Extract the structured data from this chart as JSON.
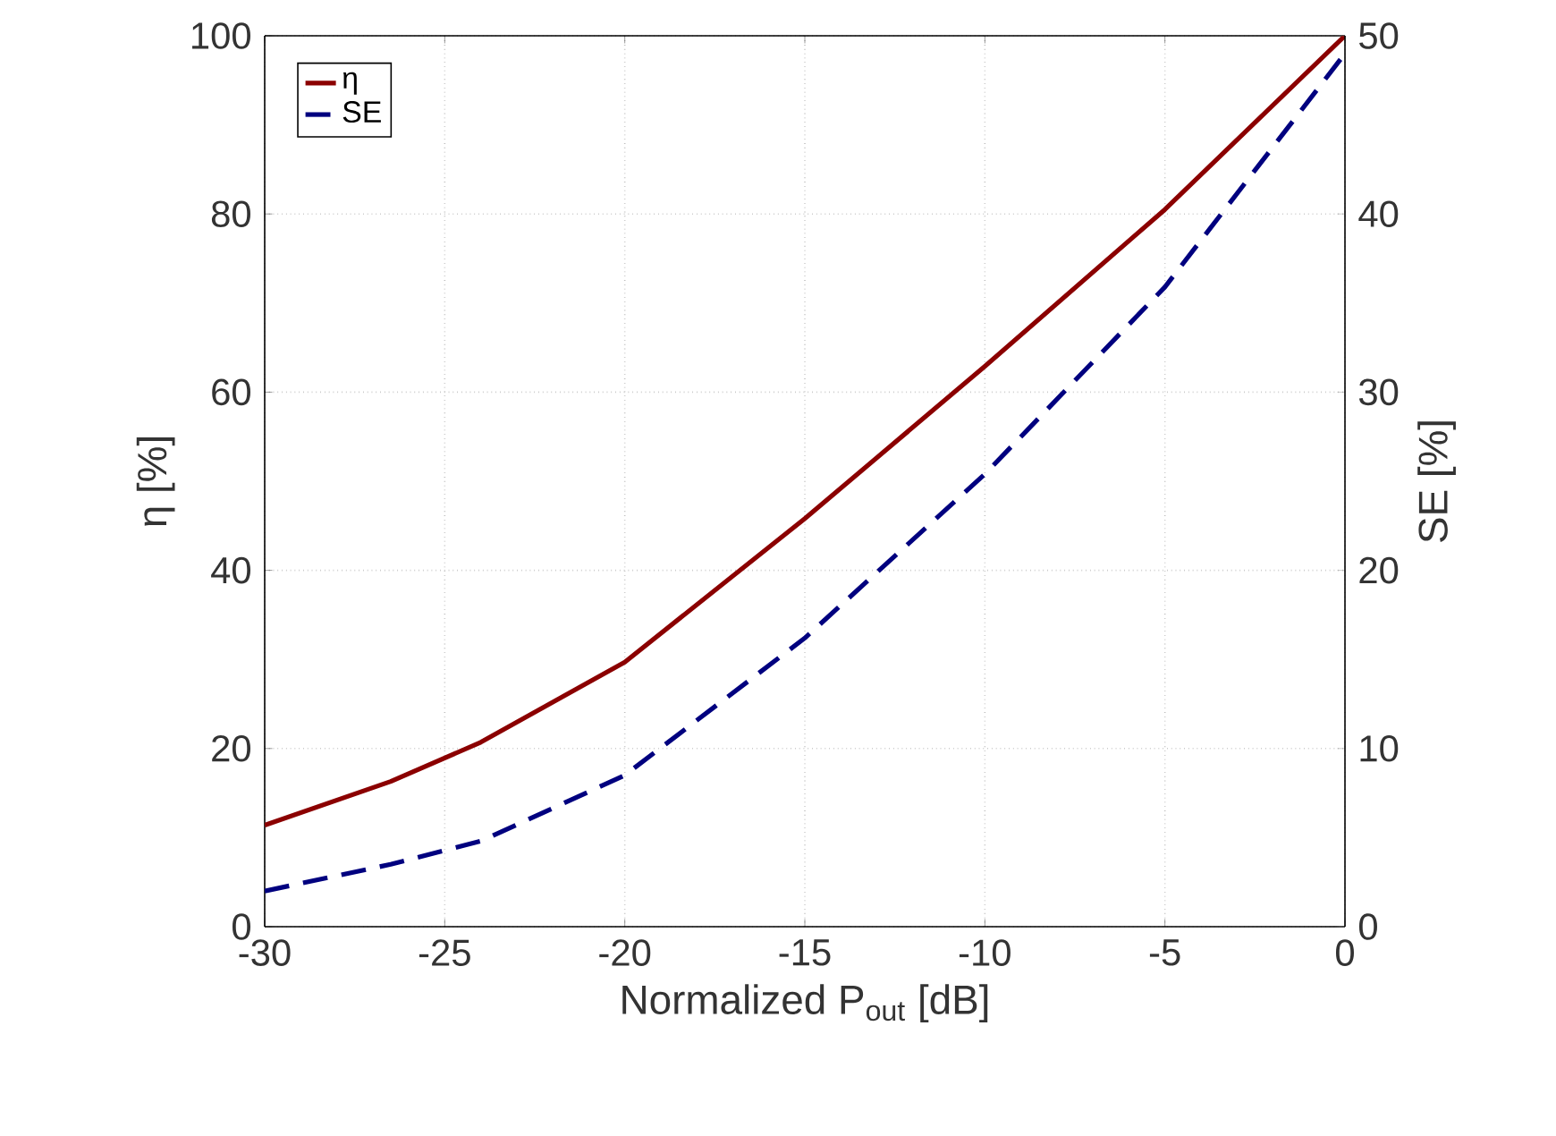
{
  "chart_data": {
    "type": "line",
    "xlabel": "Normalized P$_{out}$ [dB]",
    "ylabel": "η [%]",
    "y2label": "SE [%]",
    "x": [
      -30,
      -26.5,
      -24,
      -20,
      -15,
      -10,
      -5,
      0
    ],
    "series": [
      {
        "name": "η",
        "color": "#8b0000",
        "line_style": "solid",
        "values": [
          11.4,
          16.3,
          20.7,
          29.7,
          45.8,
          62.9,
          80.5,
          100
        ]
      },
      {
        "name": "SE",
        "color": "#00007f",
        "line_style": "dashed",
        "axis": "y2",
        "values": [
          2.0,
          3.5,
          4.8,
          8.5,
          16.2,
          25.4,
          35.9,
          49.0
        ]
      }
    ],
    "xlim": [
      -30,
      0
    ],
    "xticks": [
      -30,
      -25,
      -20,
      -15,
      -10,
      -5,
      0
    ],
    "ylim": [
      0,
      100
    ],
    "yticks": [
      0,
      20,
      40,
      60,
      80,
      100
    ],
    "y2lim": [
      0,
      50
    ],
    "y2ticks": [
      0,
      10,
      20,
      30,
      40,
      50
    ],
    "grid": true,
    "legend": "top left",
    "marker": "none"
  }
}
